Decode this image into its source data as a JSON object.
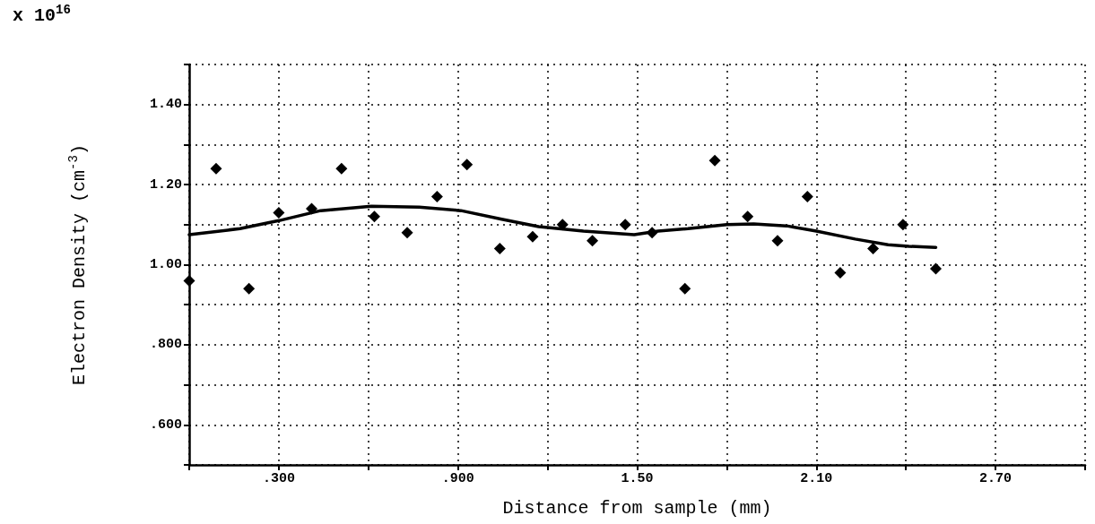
{
  "chart_data": {
    "type": "scatter",
    "xlabel": "Distance from sample (mm)",
    "ylabel": "Electron Density (cm$^{-3}$)",
    "annotations": [
      "x 10$^{16}$"
    ],
    "xlim": [
      0,
      3
    ],
    "xticks": [
      {
        "value": 0,
        "label": null
      },
      {
        "value": 0.3,
        "label": ".300"
      },
      {
        "value": 0.6,
        "label": null
      },
      {
        "value": 0.9,
        "label": ".900"
      },
      {
        "value": 1.2,
        "label": null
      },
      {
        "value": 1.5,
        "label": "1.50"
      },
      {
        "value": 1.8,
        "label": null
      },
      {
        "value": 2.1,
        "label": "2.10"
      },
      {
        "value": 2.4,
        "label": null
      },
      {
        "value": 2.7,
        "label": "2.70"
      },
      {
        "value": 3.0,
        "label": null
      }
    ],
    "ylim": [
      0.5,
      1.5
    ],
    "yticks": [
      {
        "value": 0.5,
        "label": null
      },
      {
        "value": 0.6,
        "label": ".600"
      },
      {
        "value": 0.7,
        "label": null
      },
      {
        "value": 0.8,
        "label": ".800"
      },
      {
        "value": 0.9,
        "label": null
      },
      {
        "value": 1.0,
        "label": "1.00"
      },
      {
        "value": 1.1,
        "label": null
      },
      {
        "value": 1.2,
        "label": "1.20"
      },
      {
        "value": 1.3,
        "label": null
      },
      {
        "value": 1.4,
        "label": "1.40"
      },
      {
        "value": 1.5,
        "label": null
      }
    ],
    "grid": true,
    "marker": "diamond",
    "series": [
      {
        "color": "#000000",
        "x": [
          0.0,
          0.09,
          0.2,
          0.3,
          0.41,
          0.51,
          0.62,
          0.73,
          0.83,
          0.93,
          1.04,
          1.15,
          1.25,
          1.35,
          1.46,
          1.55,
          1.66,
          1.76,
          1.87,
          1.97,
          2.07,
          2.18,
          2.29,
          2.39,
          2.5
        ],
        "values": [
          0.96,
          1.24,
          0.94,
          1.13,
          1.14,
          1.24,
          1.12,
          1.08,
          1.17,
          1.25,
          1.04,
          1.07,
          1.1,
          1.06,
          1.1,
          1.08,
          0.94,
          1.26,
          1.12,
          1.06,
          1.17,
          0.98,
          1.04,
          1.1,
          0.99
        ]
      },
      {
        "type": "line",
        "marker": "none",
        "color": "#000000",
        "x": [
          0.0,
          0.17,
          0.3,
          0.44,
          0.61,
          0.77,
          0.91,
          1.05,
          1.17,
          1.32,
          1.49,
          1.57,
          1.67,
          1.8,
          1.89,
          2.0,
          2.1,
          2.23,
          2.34,
          2.41,
          2.5
        ],
        "values": [
          1.075,
          1.09,
          1.11,
          1.135,
          1.146,
          1.144,
          1.135,
          1.113,
          1.095,
          1.084,
          1.075,
          1.084,
          1.09,
          1.1,
          1.102,
          1.097,
          1.084,
          1.064,
          1.05,
          1.046,
          1.043
        ]
      }
    ]
  }
}
